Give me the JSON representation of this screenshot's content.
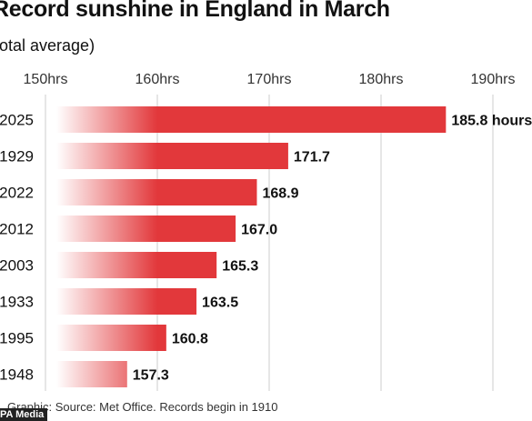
{
  "header": {
    "title": "Record sunshine in England in March",
    "subtitle": "(total average)"
  },
  "footer": {
    "source": "Graphic: Source: Met Office. Records begin in 1910",
    "credit": "PA Media"
  },
  "colors": {
    "bar": "#e2383b",
    "bar_fade": "#ffffff",
    "grid": "#cccccc"
  },
  "chart_data": {
    "type": "bar",
    "orientation": "horizontal",
    "title": "Record sunshine in England in March",
    "subtitle": "(total average)",
    "categories": [
      "2025",
      "1929",
      "2022",
      "2012",
      "2003",
      "1933",
      "1995",
      "1948"
    ],
    "values": [
      185.8,
      171.7,
      168.9,
      167.0,
      165.3,
      163.5,
      160.8,
      157.3
    ],
    "value_labels": [
      "185.8 hours",
      "171.7",
      "168.9",
      "167.0",
      "165.3",
      "163.5",
      "160.8",
      "157.3"
    ],
    "x_ticks": [
      150,
      160,
      170,
      180,
      190
    ],
    "x_tick_labels": [
      "150hrs",
      "160hrs",
      "170hrs",
      "180hrs",
      "190hrs"
    ],
    "xlim": [
      150,
      190
    ],
    "grid": true
  }
}
